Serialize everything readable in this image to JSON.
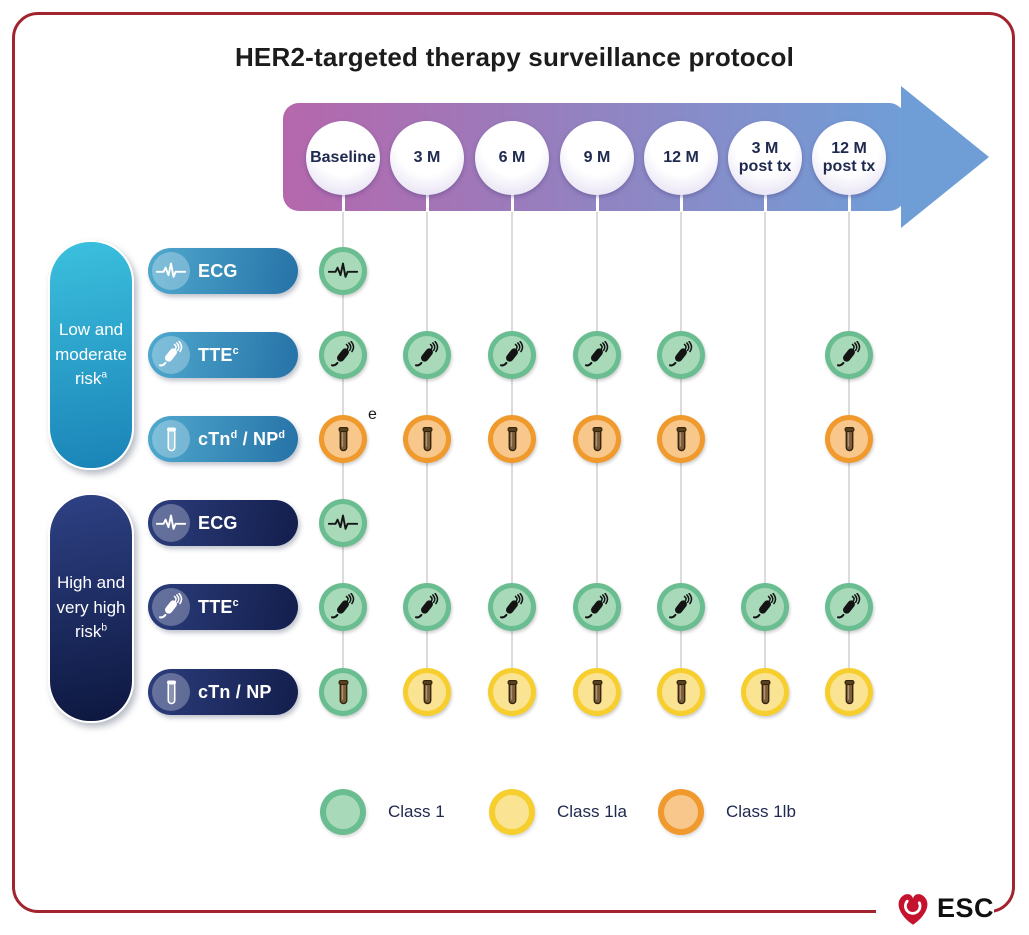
{
  "title": "HER2-targeted therapy surveillance protocol",
  "timeline": {
    "columns": [
      {
        "label": "Baseline"
      },
      {
        "label": "3 M"
      },
      {
        "label": "6 M"
      },
      {
        "label": "9 M"
      },
      {
        "label": "12 M"
      },
      {
        "label": "3 M\npost tx"
      },
      {
        "label": "12 M\npost tx"
      }
    ]
  },
  "classes": {
    "class1": {
      "ring": "#6abd90",
      "fill": "#a8dab9"
    },
    "class2a": {
      "ring": "#f6ce2d",
      "fill": "#fae494"
    },
    "class2b": {
      "ring": "#f0992d",
      "fill": "#f7c78b"
    }
  },
  "groups": [
    {
      "name": "low-and-moderate-risk",
      "pill_lines": [
        {
          "t": "Low and"
        },
        {
          "t": "moderate"
        },
        {
          "t": "risk",
          "sup": "a"
        }
      ],
      "rows": [
        {
          "icon": "ecg",
          "label": [
            {
              "t": "ECG"
            }
          ],
          "cells": [
            "class1",
            null,
            null,
            null,
            null,
            null,
            null
          ]
        },
        {
          "icon": "probe",
          "label": [
            {
              "t": "TTE",
              "sup": "c"
            }
          ],
          "cells": [
            "class1",
            "class1",
            "class1",
            "class1",
            "class1",
            null,
            "class1"
          ]
        },
        {
          "icon": "tube",
          "label": [
            {
              "t": "cTn",
              "sup": "d"
            },
            {
              "t": " / NP",
              "sup": "d"
            }
          ],
          "cells": [
            "class2b",
            "class2b",
            "class2b",
            "class2b",
            "class2b",
            null,
            "class2b"
          ],
          "note": {
            "text": "e",
            "col": 0
          }
        }
      ]
    },
    {
      "name": "high-and-very-high-risk",
      "pill_lines": [
        {
          "t": "High and"
        },
        {
          "t": "very high"
        },
        {
          "t": "risk",
          "sup": "b"
        }
      ],
      "rows": [
        {
          "icon": "ecg",
          "label": [
            {
              "t": "ECG"
            }
          ],
          "cells": [
            "class1",
            null,
            null,
            null,
            null,
            null,
            null
          ]
        },
        {
          "icon": "probe",
          "label": [
            {
              "t": "TTE",
              "sup": "c"
            }
          ],
          "cells": [
            "class1",
            "class1",
            "class1",
            "class1",
            "class1",
            "class1",
            "class1"
          ]
        },
        {
          "icon": "tube",
          "label": [
            {
              "t": "cTn / NP"
            }
          ],
          "cells": [
            "class1",
            "class2a",
            "class2a",
            "class2a",
            "class2a",
            "class2a",
            "class2a"
          ]
        }
      ]
    }
  ],
  "legend": {
    "items": [
      {
        "key": "class1",
        "label": "Class 1"
      },
      {
        "key": "class2a",
        "label": "Class 1la"
      },
      {
        "key": "class2b",
        "label": "Class 1lb"
      }
    ]
  },
  "logo": {
    "text": "ESC"
  },
  "colors": {
    "frame": "#a2242f",
    "arrow_start": "#b667ac",
    "arrow_end": "#6f9ed7",
    "text_navy": "#20294f"
  }
}
